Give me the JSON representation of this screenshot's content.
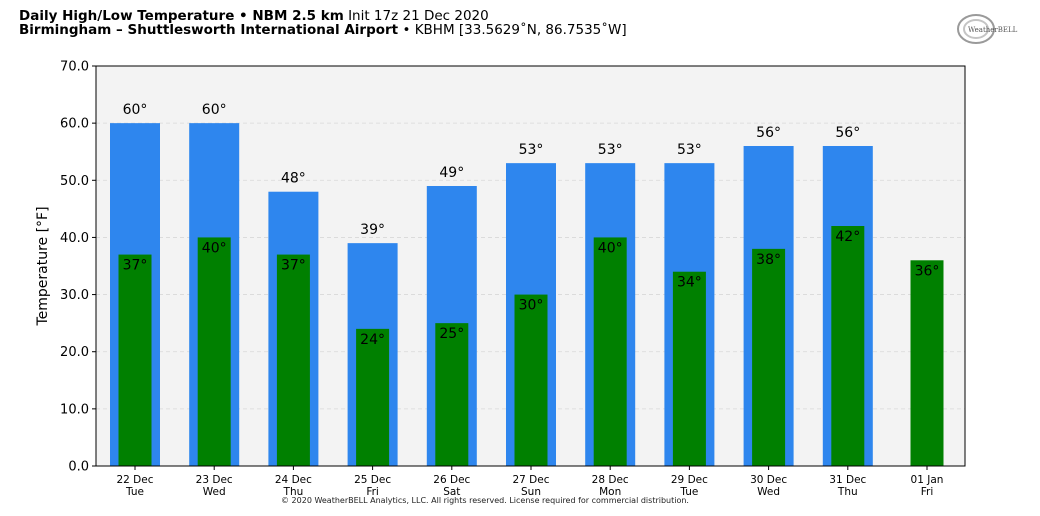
{
  "header": {
    "title_bold": "Daily High/Low Temperature • NBM 2.5 km",
    "init_text": "Init 17z 21 Dec 2020",
    "location_bold": "Birmingham – Shuttlesworth International Airport",
    "location_rest": "• KBHM [33.5629˚N, 86.7535˚W]"
  },
  "logo": {
    "text": "WeatherBELL"
  },
  "copyright": "© 2020 WeatherBELL Analytics, LLC. All rights reserved. License required for commercial distribution.",
  "colors": {
    "high": "#2e86ee",
    "low": "#008000",
    "plot_bg": "#f3f3f3",
    "grid": "#d8d8d8"
  },
  "chart_data": {
    "type": "bar",
    "ylabel": "Temperature [°F]",
    "ylim": [
      0,
      70
    ],
    "yticks": [
      "0.0",
      "10.0",
      "20.0",
      "30.0",
      "40.0",
      "50.0",
      "60.0",
      "70.0"
    ],
    "grid": true,
    "categories": [
      [
        "22 Dec",
        "Tue"
      ],
      [
        "23 Dec",
        "Wed"
      ],
      [
        "24 Dec",
        "Thu"
      ],
      [
        "25 Dec",
        "Fri"
      ],
      [
        "26 Dec",
        "Sat"
      ],
      [
        "27 Dec",
        "Sun"
      ],
      [
        "28 Dec",
        "Mon"
      ],
      [
        "29 Dec",
        "Tue"
      ],
      [
        "30 Dec",
        "Wed"
      ],
      [
        "31 Dec",
        "Thu"
      ],
      [
        "01 Jan",
        "Fri"
      ]
    ],
    "series": [
      {
        "key": "high",
        "values": [
          60,
          60,
          48,
          39,
          49,
          53,
          53,
          53,
          56,
          56,
          null
        ]
      },
      {
        "key": "low",
        "values": [
          37,
          40,
          37,
          24,
          25,
          30,
          40,
          34,
          38,
          42,
          36
        ]
      }
    ],
    "label_suffix": "°"
  }
}
